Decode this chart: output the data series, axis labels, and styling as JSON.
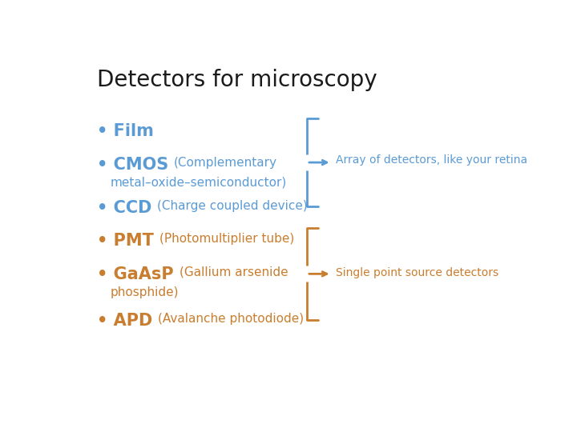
{
  "title": "Detectors for microscopy",
  "title_color": "#1a1a1a",
  "title_fontsize": 20,
  "background_color": "#ffffff",
  "blue_color": "#5b9bd5",
  "orange_color": "#c97d2e",
  "bracket_blue_label": "Array of detectors, like your retina",
  "bracket_orange_label": "Single point source detectors",
  "fig_width": 7.2,
  "fig_height": 5.4
}
